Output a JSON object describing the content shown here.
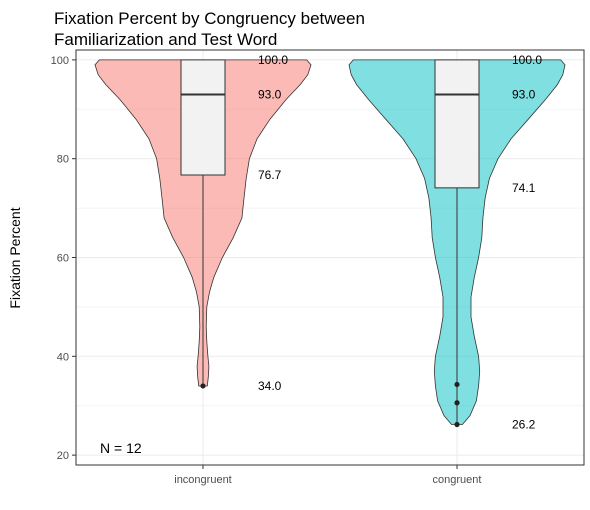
{
  "chart_data": {
    "type": "violin",
    "title_line1": "Fixation Percent by Congruency between",
    "title_line2": "Familiarization and Test Word",
    "xlabel": "",
    "ylabel": "Fixation Percent",
    "ylim": [
      18,
      102
    ],
    "yticks": [
      20,
      40,
      60,
      80,
      100
    ],
    "grid": true,
    "n_label": "N =  12",
    "categories": [
      "incongruent",
      "congruent"
    ],
    "groups": [
      {
        "category": "incongruent",
        "color": "#F8766D",
        "min": 34.0,
        "q1": 76.7,
        "median": 93.0,
        "q3": 100.0,
        "max": 100.0,
        "outliers": [
          34.0
        ],
        "labels": [
          "100.0",
          "93.0",
          "76.7",
          "34.0"
        ],
        "density": [
          [
            34,
            0.04
          ],
          [
            36,
            0.05
          ],
          [
            38,
            0.055
          ],
          [
            40,
            0.045
          ],
          [
            43,
            0.035
          ],
          [
            46,
            0.03
          ],
          [
            50,
            0.035
          ],
          [
            53,
            0.06
          ],
          [
            56,
            0.1
          ],
          [
            60,
            0.18
          ],
          [
            64,
            0.28
          ],
          [
            68,
            0.36
          ],
          [
            72,
            0.38
          ],
          [
            76,
            0.4
          ],
          [
            80,
            0.43
          ],
          [
            84,
            0.5
          ],
          [
            88,
            0.62
          ],
          [
            92,
            0.77
          ],
          [
            95,
            0.9
          ],
          [
            97,
            0.97
          ],
          [
            99,
            1.0
          ],
          [
            100,
            0.96
          ]
        ]
      },
      {
        "category": "congruent",
        "color": "#00BFC4",
        "min": 26.2,
        "q1": 74.1,
        "median": 93.0,
        "q3": 100.0,
        "max": 100.0,
        "outliers": [
          34.3,
          30.6,
          26.2
        ],
        "labels": [
          "100.0",
          "93.0",
          "74.1",
          "26.2"
        ],
        "density": [
          [
            26.2,
            0.05
          ],
          [
            28,
            0.12
          ],
          [
            31,
            0.18
          ],
          [
            34,
            0.2
          ],
          [
            37,
            0.21
          ],
          [
            40,
            0.2
          ],
          [
            44,
            0.16
          ],
          [
            48,
            0.13
          ],
          [
            52,
            0.13
          ],
          [
            56,
            0.16
          ],
          [
            60,
            0.2
          ],
          [
            64,
            0.23
          ],
          [
            68,
            0.24
          ],
          [
            72,
            0.26
          ],
          [
            76,
            0.3
          ],
          [
            80,
            0.38
          ],
          [
            84,
            0.5
          ],
          [
            88,
            0.66
          ],
          [
            92,
            0.82
          ],
          [
            95,
            0.93
          ],
          [
            97,
            0.98
          ],
          [
            99,
            1.0
          ],
          [
            100,
            0.96
          ]
        ]
      }
    ]
  }
}
